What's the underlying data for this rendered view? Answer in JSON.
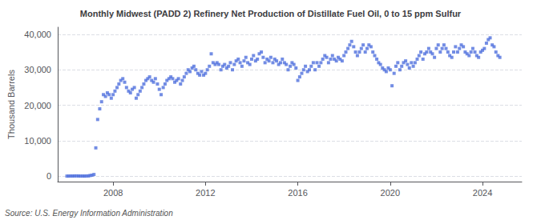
{
  "chart_data": {
    "type": "scatter",
    "title": "Monthly Midwest (PADD 2) Refinery Net Production of Distillate Fuel Oil, 0 to 15 ppm Sulfur",
    "ylabel": "Thousand Barrels",
    "annotations": [
      "Source: U.S. Energy Information Administration"
    ],
    "marker": "square",
    "grid": true,
    "xlim": [
      2005.6,
      2025.7
    ],
    "xticks": [
      2008,
      2012,
      2016,
      2020,
      2024
    ],
    "ylim": [
      -1500,
      42000
    ],
    "yticks": [
      0,
      {
        "value": 10000,
        "label": "10,000"
      },
      {
        "value": 20000,
        "label": "20,000"
      },
      {
        "value": 30000,
        "label": "30,000"
      },
      {
        "value": 40000,
        "label": "40,000"
      }
    ],
    "x": [
      2006.0,
      2006.08,
      2006.17,
      2006.25,
      2006.33,
      2006.42,
      2006.5,
      2006.58,
      2006.67,
      2006.75,
      2006.83,
      2006.92,
      2007.0,
      2007.08,
      2007.17,
      2007.25,
      2007.33,
      2007.42,
      2007.5,
      2007.58,
      2007.67,
      2007.75,
      2007.83,
      2007.92,
      2008.0,
      2008.08,
      2008.17,
      2008.25,
      2008.33,
      2008.42,
      2008.5,
      2008.58,
      2008.67,
      2008.75,
      2008.83,
      2008.92,
      2009.0,
      2009.08,
      2009.17,
      2009.25,
      2009.33,
      2009.42,
      2009.5,
      2009.58,
      2009.67,
      2009.75,
      2009.83,
      2009.92,
      2010.0,
      2010.08,
      2010.17,
      2010.25,
      2010.33,
      2010.42,
      2010.5,
      2010.58,
      2010.67,
      2010.75,
      2010.83,
      2010.92,
      2011.0,
      2011.08,
      2011.17,
      2011.25,
      2011.33,
      2011.42,
      2011.5,
      2011.58,
      2011.67,
      2011.75,
      2011.83,
      2011.92,
      2012.0,
      2012.08,
      2012.17,
      2012.25,
      2012.33,
      2012.42,
      2012.5,
      2012.58,
      2012.67,
      2012.75,
      2012.83,
      2012.92,
      2013.0,
      2013.08,
      2013.17,
      2013.25,
      2013.33,
      2013.42,
      2013.5,
      2013.58,
      2013.67,
      2013.75,
      2013.83,
      2013.92,
      2014.0,
      2014.08,
      2014.17,
      2014.25,
      2014.33,
      2014.42,
      2014.5,
      2014.58,
      2014.67,
      2014.75,
      2014.83,
      2014.92,
      2015.0,
      2015.08,
      2015.17,
      2015.25,
      2015.33,
      2015.42,
      2015.5,
      2015.58,
      2015.67,
      2015.75,
      2015.83,
      2015.92,
      2016.0,
      2016.08,
      2016.17,
      2016.25,
      2016.33,
      2016.42,
      2016.5,
      2016.58,
      2016.67,
      2016.75,
      2016.83,
      2016.92,
      2017.0,
      2017.08,
      2017.17,
      2017.25,
      2017.33,
      2017.42,
      2017.5,
      2017.58,
      2017.67,
      2017.75,
      2017.83,
      2017.92,
      2018.0,
      2018.08,
      2018.17,
      2018.25,
      2018.33,
      2018.42,
      2018.5,
      2018.58,
      2018.67,
      2018.75,
      2018.83,
      2018.92,
      2019.0,
      2019.08,
      2019.17,
      2019.25,
      2019.33,
      2019.42,
      2019.5,
      2019.58,
      2019.67,
      2019.75,
      2019.83,
      2019.92,
      2020.0,
      2020.08,
      2020.17,
      2020.25,
      2020.33,
      2020.42,
      2020.5,
      2020.58,
      2020.67,
      2020.75,
      2020.83,
      2020.92,
      2021.0,
      2021.08,
      2021.17,
      2021.25,
      2021.33,
      2021.42,
      2021.5,
      2021.58,
      2021.67,
      2021.75,
      2021.83,
      2021.92,
      2022.0,
      2022.08,
      2022.17,
      2022.25,
      2022.33,
      2022.42,
      2022.5,
      2022.58,
      2022.67,
      2022.75,
      2022.83,
      2022.92,
      2023.0,
      2023.08,
      2023.17,
      2023.25,
      2023.33,
      2023.42,
      2023.5,
      2023.58,
      2023.67,
      2023.75,
      2023.83,
      2023.92,
      2024.0,
      2024.08,
      2024.17,
      2024.25,
      2024.33,
      2024.42,
      2024.5,
      2024.58,
      2024.67,
      2024.75
    ],
    "values": [
      50,
      60,
      80,
      70,
      90,
      100,
      80,
      60,
      70,
      50,
      80,
      100,
      200,
      300,
      500,
      8000,
      16000,
      19000,
      21000,
      23000,
      22500,
      23500,
      23000,
      22000,
      23000,
      24000,
      25000,
      26000,
      27000,
      27500,
      26500,
      25000,
      24000,
      23500,
      24500,
      25000,
      22000,
      23000,
      24000,
      25000,
      26000,
      27000,
      27500,
      28000,
      27000,
      26500,
      27500,
      26000,
      24500,
      23000,
      25000,
      26000,
      27000,
      27500,
      28000,
      27500,
      26500,
      27000,
      27500,
      26000,
      27000,
      28000,
      29000,
      30000,
      29500,
      30500,
      31000,
      30000,
      29000,
      28500,
      29500,
      28500,
      29000,
      30000,
      31000,
      34500,
      32000,
      31500,
      32000,
      31500,
      30000,
      31000,
      31500,
      30500,
      31000,
      32000,
      30000,
      31500,
      32500,
      33000,
      32000,
      31000,
      32500,
      33500,
      32000,
      31500,
      33000,
      34000,
      32500,
      33000,
      34500,
      35000,
      33500,
      32000,
      33000,
      32500,
      33500,
      32000,
      33000,
      32500,
      31500,
      32000,
      33000,
      32000,
      31500,
      30000,
      31000,
      32000,
      31500,
      30500,
      27000,
      28000,
      29000,
      30000,
      31000,
      29500,
      30000,
      31000,
      32000,
      30000,
      32000,
      31000,
      32000,
      33000,
      34000,
      33500,
      32000,
      33000,
      34000,
      33000,
      32500,
      33500,
      33000,
      32500,
      34000,
      35000,
      36000,
      37000,
      38000,
      36500,
      35000,
      34000,
      35000,
      36000,
      37000,
      35000,
      36000,
      37000,
      36500,
      35000,
      34000,
      33000,
      32000,
      31500,
      30500,
      30000,
      29500,
      30500,
      30000,
      25500,
      29000,
      31000,
      32000,
      30000,
      31000,
      32000,
      32500,
      31500,
      30500,
      32000,
      31000,
      32000,
      33000,
      34000,
      35000,
      33000,
      34500,
      35000,
      36000,
      35000,
      34500,
      33500,
      36000,
      37000,
      35000,
      36000,
      37000,
      36000,
      35000,
      34000,
      33500,
      35000,
      36500,
      35000,
      36000,
      37000,
      36500,
      35000,
      34500,
      34000,
      35000,
      36000,
      35000,
      34000,
      33500,
      35000,
      35500,
      36000,
      37500,
      38500,
      39000,
      37000,
      36500,
      35000,
      34000,
      33500
    ]
  }
}
